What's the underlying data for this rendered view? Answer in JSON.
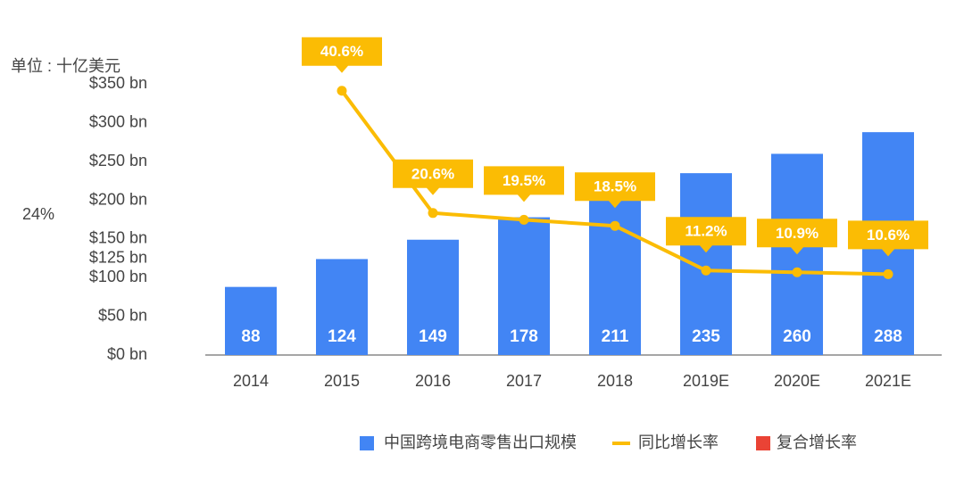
{
  "chart_data": {
    "type": "bar",
    "y_unit_label": "单位 : 十亿美元",
    "categories": [
      "2014",
      "2015",
      "2016",
      "2017",
      "2018",
      "2019E",
      "2020E",
      "2021E"
    ],
    "series": [
      {
        "name": "中国跨境电商零售出口规模",
        "type": "bar",
        "color": "#4285f4",
        "values": [
          88,
          124,
          149,
          178,
          211,
          235,
          260,
          288
        ]
      },
      {
        "name": "同比增长率",
        "type": "line",
        "axis": "y2",
        "color": "#fbbc04",
        "values": [
          null,
          40.6,
          20.6,
          19.5,
          18.5,
          11.2,
          10.9,
          10.6
        ],
        "value_labels": [
          null,
          "40.6%",
          "20.6%",
          "19.5%",
          "18.5%",
          "11.2%",
          "10.9%",
          "10.6%"
        ]
      }
    ],
    "cagr": {
      "name": "复合增长率",
      "color": "#ea4335",
      "value": 24,
      "value_label": "24%"
    },
    "ylim": [
      0,
      400
    ],
    "yticks": [
      {
        "value": 0,
        "label": "$0 bn"
      },
      {
        "value": 50,
        "label": "$50 bn"
      },
      {
        "value": 100,
        "label": "$100 bn"
      },
      {
        "value": 125,
        "label": "$125 bn"
      },
      {
        "value": 150,
        "label": "$150 bn"
      },
      {
        "value": 200,
        "label": "$200 bn"
      },
      {
        "value": 250,
        "label": "$250 bn"
      },
      {
        "value": 300,
        "label": "$300 bn"
      },
      {
        "value": 350,
        "label": "$350 bn"
      }
    ],
    "y2lim": [
      0,
      48
    ],
    "grid": false
  }
}
